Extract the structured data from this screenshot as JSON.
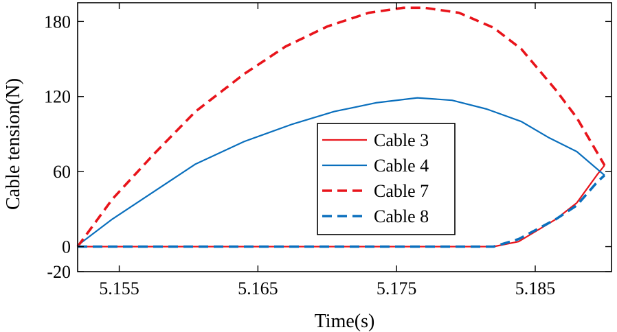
{
  "chart_data": {
    "type": "line",
    "title": "",
    "xlabel": "Time(s)",
    "ylabel": "Cable tension(N)",
    "xlim": [
      5.152,
      5.1905
    ],
    "ylim": [
      -20,
      195
    ],
    "xticks": [
      5.155,
      5.165,
      5.175,
      5.185
    ],
    "xtick_labels": [
      "5.155",
      "5.165",
      "5.175",
      "5.185"
    ],
    "yticks": [
      -20,
      0,
      60,
      120,
      180
    ],
    "ytick_labels": [
      "-20",
      "0",
      "60",
      "120",
      "180"
    ],
    "grid": false,
    "legend_position": "center-right",
    "series": [
      {
        "name": "Cable 3",
        "color": "#e8141b",
        "dash": "solid",
        "width": "thin",
        "x": [
          5.152,
          5.155,
          5.16,
          5.165,
          5.17,
          5.175,
          5.18,
          5.182,
          5.1838,
          5.1865,
          5.188,
          5.1895,
          5.19
        ],
        "y": [
          0,
          0,
          0,
          0,
          0,
          0,
          0,
          0,
          4,
          22,
          35,
          58,
          65
        ]
      },
      {
        "name": "Cable 4",
        "color": "#0a6fbd",
        "dash": "solid",
        "width": "thin",
        "x": [
          5.152,
          5.1545,
          5.1575,
          5.1605,
          5.164,
          5.1675,
          5.1705,
          5.1735,
          5.1765,
          5.179,
          5.1815,
          5.184,
          5.186,
          5.188,
          5.19
        ],
        "y": [
          1,
          22,
          44,
          66,
          84,
          98,
          108,
          115,
          119,
          117,
          110,
          100,
          87,
          76,
          57
        ]
      },
      {
        "name": "Cable 7",
        "color": "#e8141b",
        "dash": "dashed",
        "width": "thick",
        "x": [
          5.152,
          5.1545,
          5.1575,
          5.1605,
          5.164,
          5.167,
          5.17,
          5.173,
          5.1755,
          5.177,
          5.1795,
          5.182,
          5.184,
          5.1865,
          5.188,
          5.19
        ],
        "y": [
          0,
          38,
          74,
          108,
          138,
          160,
          176,
          187,
          191,
          191,
          187,
          175,
          158,
          125,
          103,
          65
        ]
      },
      {
        "name": "Cable 8",
        "color": "#0a6fbd",
        "dash": "dashed",
        "width": "thick",
        "x": [
          5.152,
          5.155,
          5.16,
          5.165,
          5.17,
          5.175,
          5.18,
          5.182,
          5.1838,
          5.1865,
          5.188,
          5.1895,
          5.19
        ],
        "y": [
          0,
          0,
          0,
          0,
          0,
          0,
          0,
          0,
          6,
          22,
          33,
          52,
          57
        ]
      }
    ]
  }
}
